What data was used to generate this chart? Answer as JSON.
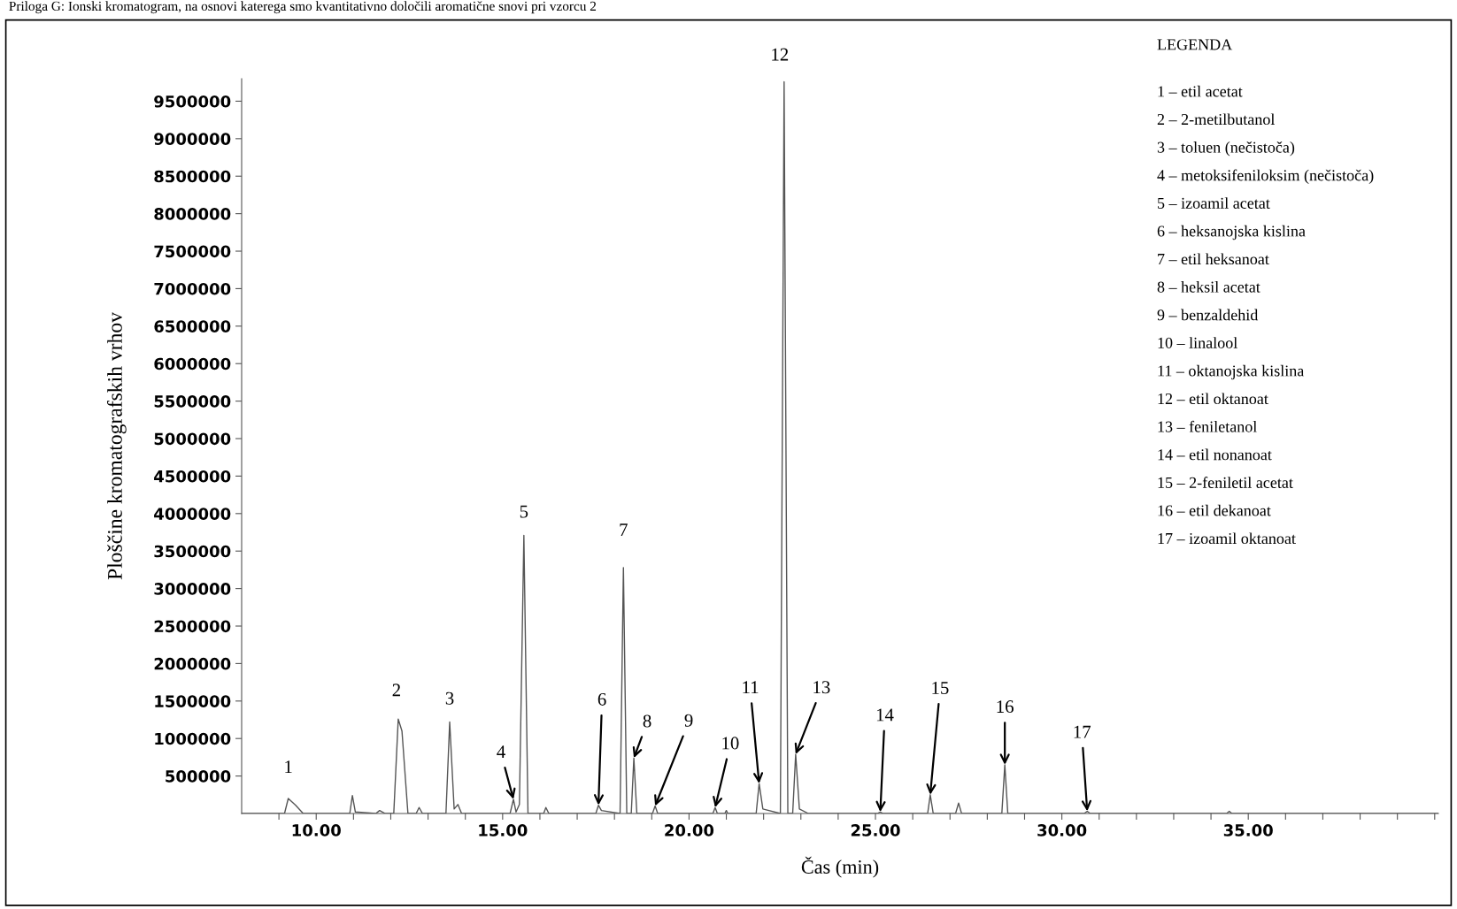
{
  "chart_data": {
    "type": "line",
    "title": "Priloga G: Ionski kromatogram, na osnovi katerega smo kvantitativno določili aromatične snovi pri vzorcu 2",
    "xlabel": "Čas (min)",
    "ylabel": "Ploščine kromatografskih vrhov",
    "legend_title": "LEGENDA",
    "xlim": [
      8.0,
      40.1
    ],
    "ylim": [
      0,
      9800000
    ],
    "xticks": [
      {
        "value": 9,
        "label": null
      },
      {
        "value": 10,
        "label": "10.00"
      },
      {
        "value": 11,
        "label": null
      },
      {
        "value": 12,
        "label": null
      },
      {
        "value": 13,
        "label": null
      },
      {
        "value": 14,
        "label": null
      },
      {
        "value": 15,
        "label": "15.00"
      },
      {
        "value": 16,
        "label": null
      },
      {
        "value": 17,
        "label": null
      },
      {
        "value": 18,
        "label": null
      },
      {
        "value": 19,
        "label": null
      },
      {
        "value": 20,
        "label": "20.00"
      },
      {
        "value": 21,
        "label": null
      },
      {
        "value": 22,
        "label": null
      },
      {
        "value": 23,
        "label": null
      },
      {
        "value": 24,
        "label": null
      },
      {
        "value": 25,
        "label": "25.00"
      },
      {
        "value": 26,
        "label": null
      },
      {
        "value": 27,
        "label": null
      },
      {
        "value": 28,
        "label": null
      },
      {
        "value": 29,
        "label": null
      },
      {
        "value": 30,
        "label": "30.00"
      },
      {
        "value": 31,
        "label": null
      },
      {
        "value": 32,
        "label": null
      },
      {
        "value": 33,
        "label": null
      },
      {
        "value": 34,
        "label": null
      },
      {
        "value": 35,
        "label": "35.00"
      },
      {
        "value": 36,
        "label": null
      },
      {
        "value": 37,
        "label": null
      },
      {
        "value": 38,
        "label": null
      },
      {
        "value": 39,
        "label": null
      },
      {
        "value": 40,
        "label": null
      }
    ],
    "yticks": [
      500000,
      1000000,
      1500000,
      2000000,
      2500000,
      3000000,
      3500000,
      4000000,
      4500000,
      5000000,
      5500000,
      6000000,
      6500000,
      7000000,
      7500000,
      8000000,
      8500000,
      9000000,
      9500000
    ],
    "grid": false,
    "legend": false,
    "marker": "none",
    "line_style": "solid",
    "series": [
      {
        "color": "#555555",
        "x": [
          8.02,
          9.15,
          9.25,
          9.45,
          9.65,
          10.9,
          10.97,
          11.05,
          11.6,
          11.7,
          11.85,
          12.08,
          12.2,
          12.3,
          12.46,
          12.68,
          12.76,
          12.85,
          13.48,
          13.58,
          13.7,
          13.8,
          13.9,
          15.2,
          15.29,
          15.36,
          15.45,
          15.57,
          15.68,
          16.1,
          16.16,
          16.24,
          17.5,
          17.57,
          17.65,
          18.15,
          18.24,
          18.33,
          18.45,
          18.52,
          18.6,
          19.02,
          19.09,
          19.16,
          20.64,
          20.7,
          20.76,
          20.96,
          21.0,
          21.04,
          21.8,
          21.88,
          21.98,
          22.45,
          22.55,
          22.65,
          22.78,
          22.86,
          22.96,
          23.2,
          25.05,
          25.13,
          25.2,
          26.4,
          26.47,
          26.55,
          27.15,
          27.23,
          27.31,
          28.39,
          28.47,
          28.55,
          30.6,
          30.68,
          30.76,
          34.42,
          34.49,
          34.56,
          40.1
        ],
        "values": [
          0,
          0,
          200000,
          110000,
          0,
          0,
          240000,
          20000,
          0,
          40000,
          0,
          0,
          1260000,
          1100000,
          0,
          0,
          80000,
          0,
          0,
          1220000,
          60000,
          120000,
          0,
          0,
          190000,
          20000,
          120000,
          3710000,
          0,
          0,
          80000,
          0,
          0,
          110000,
          40000,
          0,
          3280000,
          0,
          0,
          740000,
          0,
          0,
          100000,
          0,
          0,
          80000,
          0,
          0,
          40000,
          0,
          0,
          400000,
          60000,
          0,
          9760000,
          0,
          0,
          790000,
          60000,
          0,
          0,
          20000,
          0,
          0,
          250000,
          0,
          0,
          140000,
          0,
          0,
          650000,
          0,
          0,
          30000,
          0,
          0,
          30000,
          0,
          0
        ]
      }
    ],
    "annotations": [
      "1 – etil acetat",
      "2 – 2-metilbutanol",
      "3 – toluen (nečistoča)",
      "4 – metoksifeniloksim (nečistoča)",
      "5 – izoamil acetat",
      "6 – heksanojska kislina",
      "7 – etil heksanoat",
      "8 – heksil acetat",
      "9 – benzaldehid",
      "10 – linalool",
      "11 – oktanojska kislina",
      "12 – etil oktanoat",
      "13 – feniletanol",
      "14 – etil nonanoat",
      "15 – 2-feniletil acetat",
      "16 – etil dekanoat",
      "17 – izoamil oktanoat",
      {
        "text": "1",
        "x": 9.25,
        "y": 200000
      },
      {
        "text": "2",
        "x": 12.2,
        "y": 1260000
      },
      {
        "text": "3",
        "x": 13.58,
        "y": 1220000
      },
      {
        "text": "4",
        "x": 15.29,
        "y": 190000
      },
      {
        "text": "5",
        "x": 15.57,
        "y": 3710000
      },
      {
        "text": "6",
        "x": 17.57,
        "y": 110000
      },
      {
        "text": "7",
        "x": 18.24,
        "y": 3280000
      },
      {
        "text": "8",
        "x": 18.52,
        "y": 740000
      },
      {
        "text": "9",
        "x": 19.09,
        "y": 100000
      },
      {
        "text": "10",
        "x": 20.7,
        "y": 80000
      },
      {
        "text": "11",
        "x": 21.88,
        "y": 400000
      },
      {
        "text": "12",
        "x": 22.55,
        "y": 9760000
      },
      {
        "text": "13",
        "x": 22.86,
        "y": 790000
      },
      {
        "text": "14",
        "x": 25.13,
        "y": 20000
      },
      {
        "text": "15",
        "x": 26.47,
        "y": 250000
      },
      {
        "text": "16",
        "x": 28.47,
        "y": 650000
      },
      {
        "text": "17",
        "x": 30.68,
        "y": 30000
      }
    ]
  }
}
